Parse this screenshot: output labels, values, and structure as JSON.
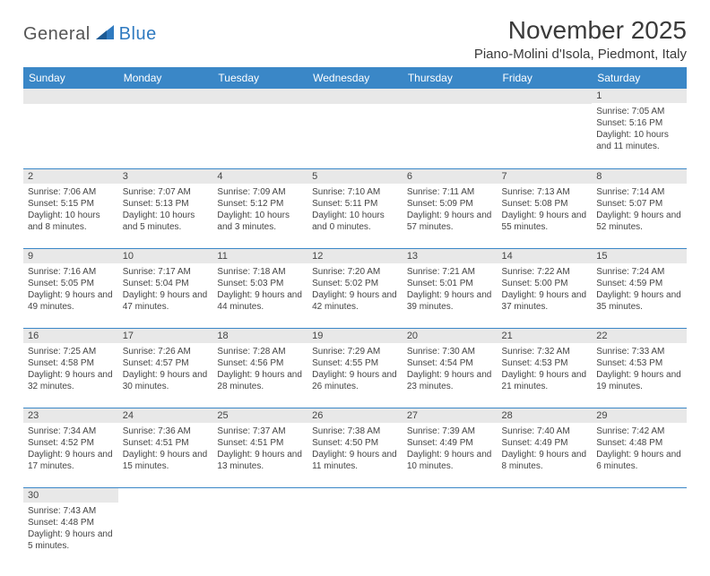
{
  "logo": {
    "text1": "General",
    "text2": "Blue"
  },
  "title": "November 2025",
  "location": "Piano-Molini d'Isola, Piedmont, Italy",
  "colors": {
    "header_bg": "#3a87c7",
    "header_text": "#ffffff",
    "daynum_bg": "#e8e8e8",
    "border": "#3a87c7",
    "logo_gray": "#555555",
    "logo_blue": "#2f7ac0"
  },
  "columns": [
    "Sunday",
    "Monday",
    "Tuesday",
    "Wednesday",
    "Thursday",
    "Friday",
    "Saturday"
  ],
  "weeks": [
    [
      null,
      null,
      null,
      null,
      null,
      null,
      {
        "n": "1",
        "sr": "7:05 AM",
        "ss": "5:16 PM",
        "dl": "10 hours and 11 minutes."
      }
    ],
    [
      {
        "n": "2",
        "sr": "7:06 AM",
        "ss": "5:15 PM",
        "dl": "10 hours and 8 minutes."
      },
      {
        "n": "3",
        "sr": "7:07 AM",
        "ss": "5:13 PM",
        "dl": "10 hours and 5 minutes."
      },
      {
        "n": "4",
        "sr": "7:09 AM",
        "ss": "5:12 PM",
        "dl": "10 hours and 3 minutes."
      },
      {
        "n": "5",
        "sr": "7:10 AM",
        "ss": "5:11 PM",
        "dl": "10 hours and 0 minutes."
      },
      {
        "n": "6",
        "sr": "7:11 AM",
        "ss": "5:09 PM",
        "dl": "9 hours and 57 minutes."
      },
      {
        "n": "7",
        "sr": "7:13 AM",
        "ss": "5:08 PM",
        "dl": "9 hours and 55 minutes."
      },
      {
        "n": "8",
        "sr": "7:14 AM",
        "ss": "5:07 PM",
        "dl": "9 hours and 52 minutes."
      }
    ],
    [
      {
        "n": "9",
        "sr": "7:16 AM",
        "ss": "5:05 PM",
        "dl": "9 hours and 49 minutes."
      },
      {
        "n": "10",
        "sr": "7:17 AM",
        "ss": "5:04 PM",
        "dl": "9 hours and 47 minutes."
      },
      {
        "n": "11",
        "sr": "7:18 AM",
        "ss": "5:03 PM",
        "dl": "9 hours and 44 minutes."
      },
      {
        "n": "12",
        "sr": "7:20 AM",
        "ss": "5:02 PM",
        "dl": "9 hours and 42 minutes."
      },
      {
        "n": "13",
        "sr": "7:21 AM",
        "ss": "5:01 PM",
        "dl": "9 hours and 39 minutes."
      },
      {
        "n": "14",
        "sr": "7:22 AM",
        "ss": "5:00 PM",
        "dl": "9 hours and 37 minutes."
      },
      {
        "n": "15",
        "sr": "7:24 AM",
        "ss": "4:59 PM",
        "dl": "9 hours and 35 minutes."
      }
    ],
    [
      {
        "n": "16",
        "sr": "7:25 AM",
        "ss": "4:58 PM",
        "dl": "9 hours and 32 minutes."
      },
      {
        "n": "17",
        "sr": "7:26 AM",
        "ss": "4:57 PM",
        "dl": "9 hours and 30 minutes."
      },
      {
        "n": "18",
        "sr": "7:28 AM",
        "ss": "4:56 PM",
        "dl": "9 hours and 28 minutes."
      },
      {
        "n": "19",
        "sr": "7:29 AM",
        "ss": "4:55 PM",
        "dl": "9 hours and 26 minutes."
      },
      {
        "n": "20",
        "sr": "7:30 AM",
        "ss": "4:54 PM",
        "dl": "9 hours and 23 minutes."
      },
      {
        "n": "21",
        "sr": "7:32 AM",
        "ss": "4:53 PM",
        "dl": "9 hours and 21 minutes."
      },
      {
        "n": "22",
        "sr": "7:33 AM",
        "ss": "4:53 PM",
        "dl": "9 hours and 19 minutes."
      }
    ],
    [
      {
        "n": "23",
        "sr": "7:34 AM",
        "ss": "4:52 PM",
        "dl": "9 hours and 17 minutes."
      },
      {
        "n": "24",
        "sr": "7:36 AM",
        "ss": "4:51 PM",
        "dl": "9 hours and 15 minutes."
      },
      {
        "n": "25",
        "sr": "7:37 AM",
        "ss": "4:51 PM",
        "dl": "9 hours and 13 minutes."
      },
      {
        "n": "26",
        "sr": "7:38 AM",
        "ss": "4:50 PM",
        "dl": "9 hours and 11 minutes."
      },
      {
        "n": "27",
        "sr": "7:39 AM",
        "ss": "4:49 PM",
        "dl": "9 hours and 10 minutes."
      },
      {
        "n": "28",
        "sr": "7:40 AM",
        "ss": "4:49 PM",
        "dl": "9 hours and 8 minutes."
      },
      {
        "n": "29",
        "sr": "7:42 AM",
        "ss": "4:48 PM",
        "dl": "9 hours and 6 minutes."
      }
    ],
    [
      {
        "n": "30",
        "sr": "7:43 AM",
        "ss": "4:48 PM",
        "dl": "9 hours and 5 minutes."
      },
      null,
      null,
      null,
      null,
      null,
      null
    ]
  ],
  "labels": {
    "sunrise": "Sunrise:",
    "sunset": "Sunset:",
    "daylight": "Daylight:"
  }
}
